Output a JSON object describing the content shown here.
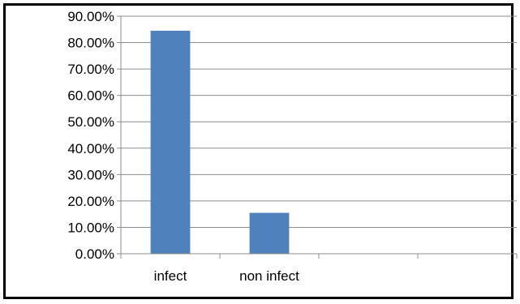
{
  "chart_data": {
    "type": "bar",
    "categories": [
      "infect",
      "non infect",
      "",
      ""
    ],
    "values": [
      84.5,
      15.5,
      null,
      null
    ],
    "bar_color": "#4f81bd",
    "ylim": [
      0,
      90
    ],
    "yticks": [
      0,
      10,
      20,
      30,
      40,
      50,
      60,
      70,
      80,
      90
    ],
    "ytick_labels": [
      "0.00%",
      "10.00%",
      "20.00%",
      "30.00%",
      "40.00%",
      "50.00%",
      "60.00%",
      "70.00%",
      "80.00%",
      "90.00%"
    ],
    "grid": true,
    "legend": "none"
  }
}
